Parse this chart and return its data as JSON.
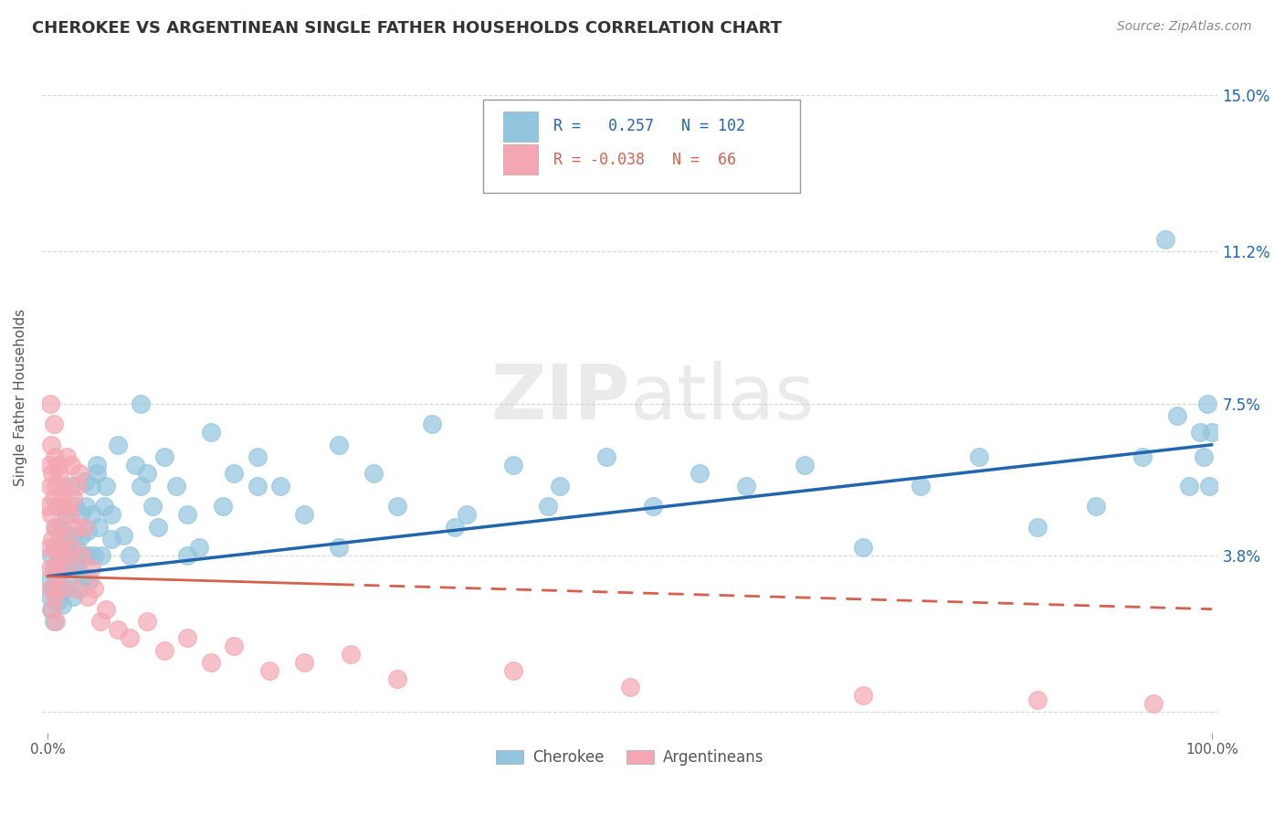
{
  "title": "CHEROKEE VS ARGENTINEAN SINGLE FATHER HOUSEHOLDS CORRELATION CHART",
  "source": "Source: ZipAtlas.com",
  "ylabel": "Single Father Households",
  "right_yticklabels": [
    "",
    "3.8%",
    "7.5%",
    "11.2%",
    "15.0%"
  ],
  "right_yticks": [
    0.0,
    0.038,
    0.075,
    0.112,
    0.15
  ],
  "cherokee_R": "0.257",
  "cherokee_N": "102",
  "argentinean_R": "-0.038",
  "argentinean_N": "66",
  "cherokee_color": "#92C5DE",
  "argentinean_color": "#F4A7B2",
  "cherokee_line_color": "#2166AC",
  "argentinean_line_color": "#D6604D",
  "watermark_color": "#CCCCCC",
  "background_color": "#ffffff",
  "grid_color": "#cccccc",
  "ylim_min": -0.005,
  "ylim_max": 0.158,
  "xlim_min": -0.005,
  "xlim_max": 1.005,
  "cherokee_scatter_x": [
    0.001,
    0.002,
    0.003,
    0.003,
    0.004,
    0.005,
    0.005,
    0.006,
    0.007,
    0.007,
    0.008,
    0.008,
    0.009,
    0.01,
    0.01,
    0.011,
    0.012,
    0.013,
    0.014,
    0.015,
    0.016,
    0.017,
    0.018,
    0.019,
    0.02,
    0.021,
    0.022,
    0.023,
    0.024,
    0.025,
    0.026,
    0.027,
    0.028,
    0.029,
    0.03,
    0.031,
    0.032,
    0.033,
    0.034,
    0.035,
    0.036,
    0.037,
    0.038,
    0.04,
    0.042,
    0.044,
    0.046,
    0.048,
    0.05,
    0.055,
    0.06,
    0.065,
    0.07,
    0.075,
    0.08,
    0.085,
    0.09,
    0.095,
    0.1,
    0.11,
    0.12,
    0.13,
    0.14,
    0.15,
    0.16,
    0.18,
    0.2,
    0.22,
    0.25,
    0.28,
    0.3,
    0.33,
    0.36,
    0.4,
    0.44,
    0.48,
    0.52,
    0.56,
    0.6,
    0.65,
    0.7,
    0.75,
    0.8,
    0.85,
    0.9,
    0.94,
    0.96,
    0.97,
    0.98,
    0.99,
    0.993,
    0.996,
    0.998,
    1.0,
    0.43,
    0.35,
    0.25,
    0.18,
    0.12,
    0.08,
    0.055,
    0.042
  ],
  "cherokee_scatter_y": [
    0.032,
    0.028,
    0.025,
    0.038,
    0.03,
    0.035,
    0.022,
    0.04,
    0.033,
    0.045,
    0.027,
    0.05,
    0.036,
    0.03,
    0.042,
    0.038,
    0.026,
    0.044,
    0.035,
    0.03,
    0.048,
    0.04,
    0.033,
    0.055,
    0.038,
    0.043,
    0.028,
    0.05,
    0.035,
    0.04,
    0.036,
    0.03,
    0.048,
    0.043,
    0.038,
    0.033,
    0.056,
    0.05,
    0.044,
    0.038,
    0.032,
    0.055,
    0.048,
    0.038,
    0.06,
    0.045,
    0.038,
    0.05,
    0.055,
    0.048,
    0.065,
    0.043,
    0.038,
    0.06,
    0.075,
    0.058,
    0.05,
    0.045,
    0.062,
    0.055,
    0.048,
    0.04,
    0.068,
    0.05,
    0.058,
    0.062,
    0.055,
    0.048,
    0.065,
    0.058,
    0.05,
    0.07,
    0.048,
    0.06,
    0.055,
    0.062,
    0.05,
    0.058,
    0.055,
    0.06,
    0.04,
    0.055,
    0.062,
    0.045,
    0.05,
    0.062,
    0.115,
    0.072,
    0.055,
    0.068,
    0.062,
    0.075,
    0.055,
    0.068,
    0.05,
    0.045,
    0.04,
    0.055,
    0.038,
    0.055,
    0.042,
    0.058
  ],
  "argentinean_scatter_x": [
    0.0,
    0.001,
    0.001,
    0.002,
    0.002,
    0.002,
    0.003,
    0.003,
    0.003,
    0.004,
    0.004,
    0.004,
    0.005,
    0.005,
    0.005,
    0.006,
    0.006,
    0.006,
    0.007,
    0.007,
    0.007,
    0.008,
    0.008,
    0.009,
    0.009,
    0.01,
    0.01,
    0.011,
    0.012,
    0.013,
    0.014,
    0.015,
    0.016,
    0.017,
    0.018,
    0.019,
    0.02,
    0.021,
    0.022,
    0.023,
    0.024,
    0.025,
    0.027,
    0.029,
    0.031,
    0.034,
    0.037,
    0.04,
    0.045,
    0.05,
    0.06,
    0.07,
    0.085,
    0.1,
    0.12,
    0.14,
    0.16,
    0.19,
    0.22,
    0.26,
    0.3,
    0.4,
    0.5,
    0.7,
    0.85,
    0.95
  ],
  "argentinean_scatter_y": [
    0.05,
    0.06,
    0.04,
    0.075,
    0.055,
    0.035,
    0.065,
    0.048,
    0.03,
    0.058,
    0.042,
    0.025,
    0.07,
    0.052,
    0.035,
    0.062,
    0.045,
    0.028,
    0.055,
    0.04,
    0.022,
    0.05,
    0.033,
    0.06,
    0.038,
    0.058,
    0.03,
    0.045,
    0.052,
    0.042,
    0.055,
    0.038,
    0.062,
    0.05,
    0.035,
    0.048,
    0.06,
    0.04,
    0.052,
    0.03,
    0.045,
    0.055,
    0.058,
    0.038,
    0.045,
    0.028,
    0.035,
    0.03,
    0.022,
    0.025,
    0.02,
    0.018,
    0.022,
    0.015,
    0.018,
    0.012,
    0.016,
    0.01,
    0.012,
    0.014,
    0.008,
    0.01,
    0.006,
    0.004,
    0.003,
    0.002
  ]
}
